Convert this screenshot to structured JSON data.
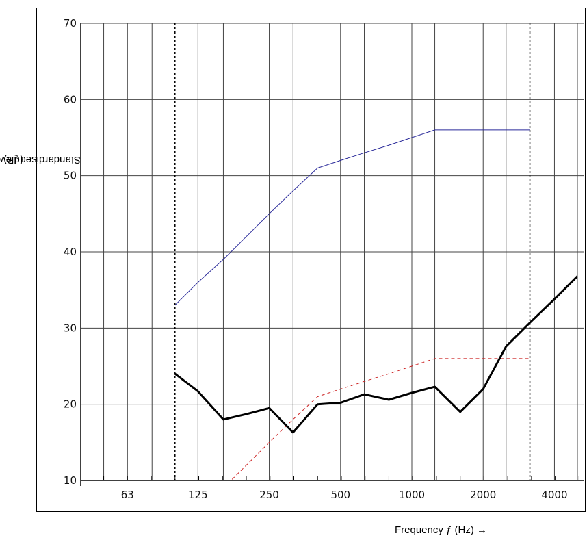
{
  "chart_data": {
    "type": "line",
    "xscale": "log",
    "grid": true,
    "ylabel": "Standardised Level Difference R",
    "ylabel_sub": "w",
    "ylabel_suffix": " (dB) →",
    "xlabel": "Frequency ƒ (Hz) →",
    "ylim": [
      10,
      70
    ],
    "xlim": [
      40,
      5000
    ],
    "yticks": [
      10,
      20,
      30,
      40,
      50,
      60,
      70
    ],
    "xtick_labels": [
      {
        "value": 63,
        "label": "63"
      },
      {
        "value": 125,
        "label": "125"
      },
      {
        "value": 250,
        "label": "250"
      },
      {
        "value": 500,
        "label": "500"
      },
      {
        "value": 1000,
        "label": "1000"
      },
      {
        "value": 2000,
        "label": "2000"
      },
      {
        "value": 4000,
        "label": "4000"
      }
    ],
    "minor_gridlines": [
      50,
      80,
      160,
      315,
      630,
      1250,
      2500,
      5000
    ],
    "range_markers": [
      100,
      3150
    ],
    "series": [
      {
        "color": "#2a2a9a",
        "style": "solid",
        "width": 1,
        "x": [
          100,
          125,
          160,
          200,
          250,
          315,
          400,
          500,
          630,
          800,
          1000,
          1250,
          1600,
          2000,
          2500,
          3150
        ],
        "y": [
          33,
          36,
          39,
          42,
          45,
          48,
          51,
          52,
          53,
          54,
          55,
          56,
          56,
          56,
          56,
          56
        ]
      },
      {
        "color": "#cc2222",
        "style": "dashed",
        "width": 1,
        "x": [
          160,
          200,
          250,
          315,
          400,
          500,
          630,
          800,
          1000,
          1250,
          1600,
          2000,
          2500,
          3150
        ],
        "y": [
          9,
          12,
          15,
          18,
          21,
          22,
          23,
          24,
          25,
          26,
          26,
          26,
          26,
          26
        ]
      },
      {
        "color": "#000000",
        "style": "solid",
        "width": 3,
        "x": [
          100,
          125,
          160,
          200,
          250,
          315,
          400,
          500,
          630,
          800,
          1000,
          1250,
          1600,
          2000,
          2500,
          3150,
          4000,
          5000
        ],
        "y": [
          24,
          21.7,
          18,
          18.7,
          19.5,
          16.3,
          20,
          20.2,
          21.3,
          20.6,
          21.5,
          22.3,
          19,
          22,
          27.6,
          30.7,
          33.8,
          36.8
        ]
      }
    ]
  }
}
